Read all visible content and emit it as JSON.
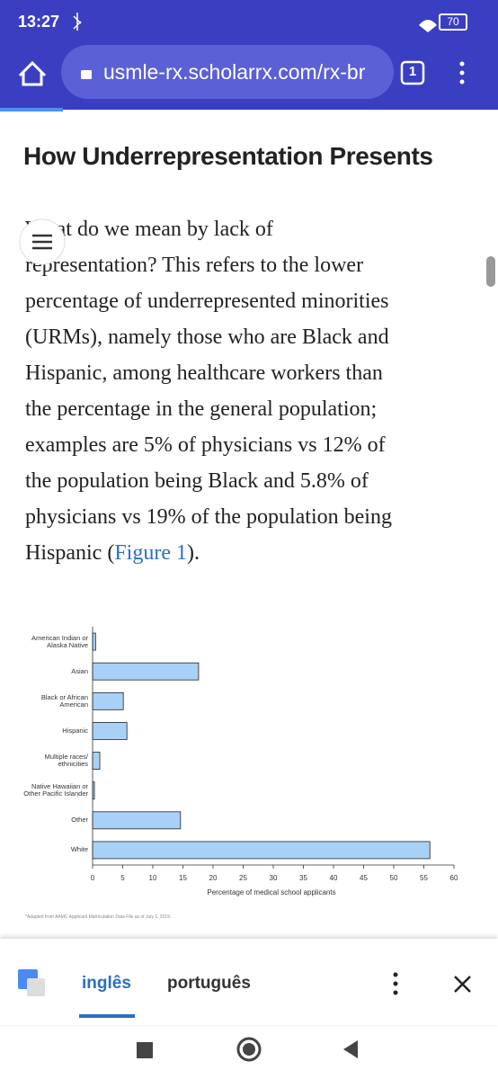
{
  "status_bar": {
    "time": "13:27",
    "battery": "70"
  },
  "browser": {
    "url": "usmle-rx.scholarrx.com/rx-br",
    "tab_count": "1"
  },
  "article": {
    "heading": "How Underrepresentation Presents",
    "paragraph_lines": [
      "What do we mean by lack of",
      "representation? This refers to the lower",
      "percentage of underrepresented minorities",
      "(URMs), namely those who are Black and",
      "Hispanic, among healthcare workers than",
      "the percentage in the general population;",
      "examples are 5% of physicians vs 12% of",
      "the population being Black and 5.8% of",
      "physicians vs 19% of the population being"
    ],
    "last_line": {
      "before": "Hispanic (",
      "link": "Figure 1",
      "after": ")."
    }
  },
  "chart_data": {
    "type": "bar",
    "orientation": "horizontal",
    "categories": [
      "American Indian or Alaska Native",
      "Asian",
      "Black or African American",
      "Hispanic",
      "Multiple races/ ethnicities",
      "Native Hawaiian or Other Pacific Islander",
      "Other",
      "White"
    ],
    "values": [
      0.5,
      17.6,
      5.1,
      5.7,
      1.2,
      0.3,
      14.6,
      56.0
    ],
    "color": "#a9d1f7",
    "xlim": [
      0,
      60
    ],
    "xticks": [
      0,
      5,
      10,
      15,
      20,
      25,
      30,
      35,
      40,
      45,
      50,
      55,
      60
    ],
    "xlabel": "Percentage of medical school applicants",
    "footnote": "*Adapted from AAMC Applicant Matriculation Data File as of July 1, 2019."
  },
  "translate_bar": {
    "source_lang": "inglês",
    "target_lang": "português"
  }
}
